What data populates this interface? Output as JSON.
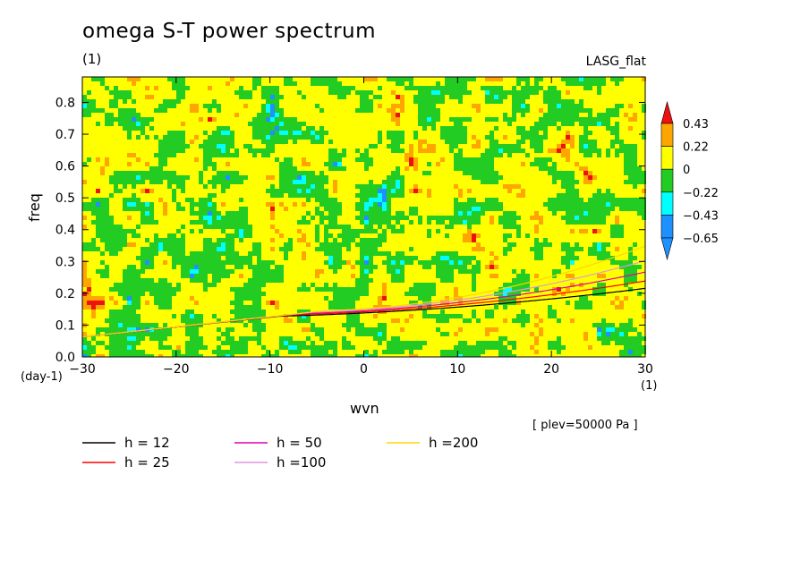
{
  "header": {
    "title": "omega S-T power spectrum",
    "units": "(1)",
    "model": "LASG_flat"
  },
  "footer": {
    "plev": "[ plev=50000 Pa ]"
  },
  "chart_data": {
    "type": "heatmap",
    "title": "omega S-T power spectrum",
    "xlabel": "wvn",
    "ylabel": "freq",
    "x_unit": "(1)",
    "y_unit": "(day-1)",
    "xlim": [
      -30,
      30
    ],
    "ylim": [
      0,
      0.88
    ],
    "x_ticks": [
      -30,
      -20,
      -10,
      0,
      10,
      20,
      30
    ],
    "y_ticks": [
      0.0,
      0.1,
      0.2,
      0.3,
      0.4,
      0.5,
      0.6,
      0.7,
      0.8
    ],
    "y_tick_labels": [
      "0.0",
      "0.1",
      "0.2",
      "0.3",
      "0.4",
      "0.5",
      "0.6",
      "0.7",
      "0.8"
    ],
    "colorbar": {
      "labels": [
        "0.43",
        "0.22",
        "0",
        "-0.22",
        "-0.43",
        "-0.65"
      ],
      "levels": [
        -0.65,
        -0.43,
        -0.22,
        0,
        0.22,
        0.43
      ],
      "colors": [
        "#1e90ff",
        "#00ffff",
        "#22cc22",
        "#ffff00",
        "#ffa500",
        "#ee1111"
      ],
      "extends": "both"
    },
    "field_description_values": {
      "dominant_values": [
        0,
        0.22,
        -0.22
      ],
      "occasional_values": [
        -0.43,
        -0.65,
        0.43
      ]
    },
    "dispersion_curves": [
      {
        "name": "h = 12",
        "h": 12,
        "color": "#000000"
      },
      {
        "name": "h = 25",
        "h": 25,
        "color": "#ff0000"
      },
      {
        "name": "h = 50",
        "h": 50,
        "color": "#dd00aa"
      },
      {
        "name": "h =100",
        "h": 100,
        "color": "#dd99dd"
      },
      {
        "name": "h =200",
        "h": 200,
        "color": "#ffd700"
      }
    ],
    "grid": false,
    "legend_position": "bottom"
  }
}
